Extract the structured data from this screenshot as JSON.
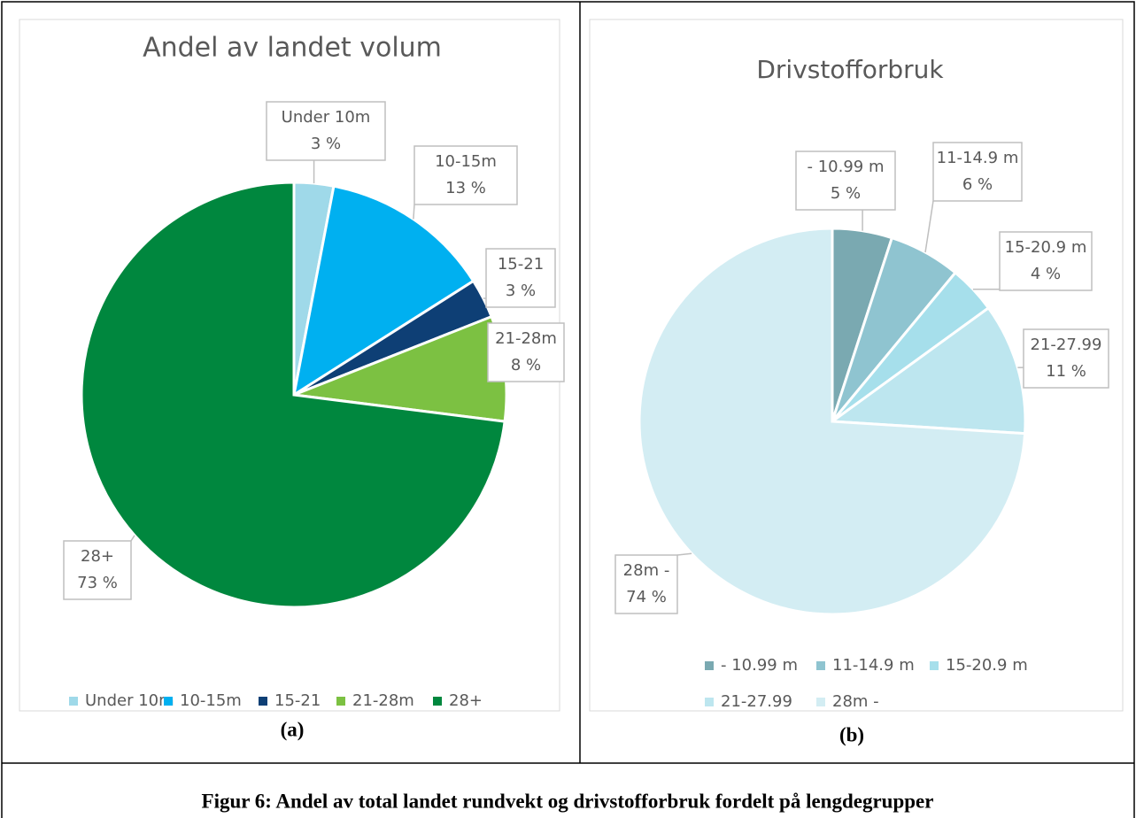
{
  "chart_data": [
    {
      "type": "pie",
      "title": "Andel av landet volum",
      "categories": [
        "Under 10m",
        "10-15m",
        "15-21",
        "21-28m",
        "28+"
      ],
      "values": [
        3,
        13,
        3,
        8,
        73
      ],
      "value_labels": [
        "3 %",
        "13 %",
        "3 %",
        "8 %",
        "73 %"
      ],
      "colors": [
        "#9fd9e9",
        "#00b0f0",
        "#0e3f75",
        "#7cc142",
        "#00873e"
      ],
      "legend": "bottom"
    },
    {
      "type": "pie",
      "title": "Drivstofforbruk",
      "categories": [
        "- 10.99 m",
        "11-14.9 m",
        "15-20.9 m",
        "21-27.99",
        "28m -"
      ],
      "values": [
        5,
        6,
        4,
        11,
        74
      ],
      "value_labels": [
        "5 %",
        "6 %",
        "4 %",
        "11 %",
        "74 %"
      ],
      "colors": [
        "#7aa9b1",
        "#8fc4d0",
        "#a6dfeb",
        "#bde6ef",
        "#d3edf3"
      ],
      "legend": "bottom"
    }
  ],
  "figure": {
    "panels": [
      "(a)",
      "(b)"
    ],
    "caption": "Figur 6: Andel av total landet rundvekt og drivstofforbruk fordelt på lengdegrupper"
  }
}
